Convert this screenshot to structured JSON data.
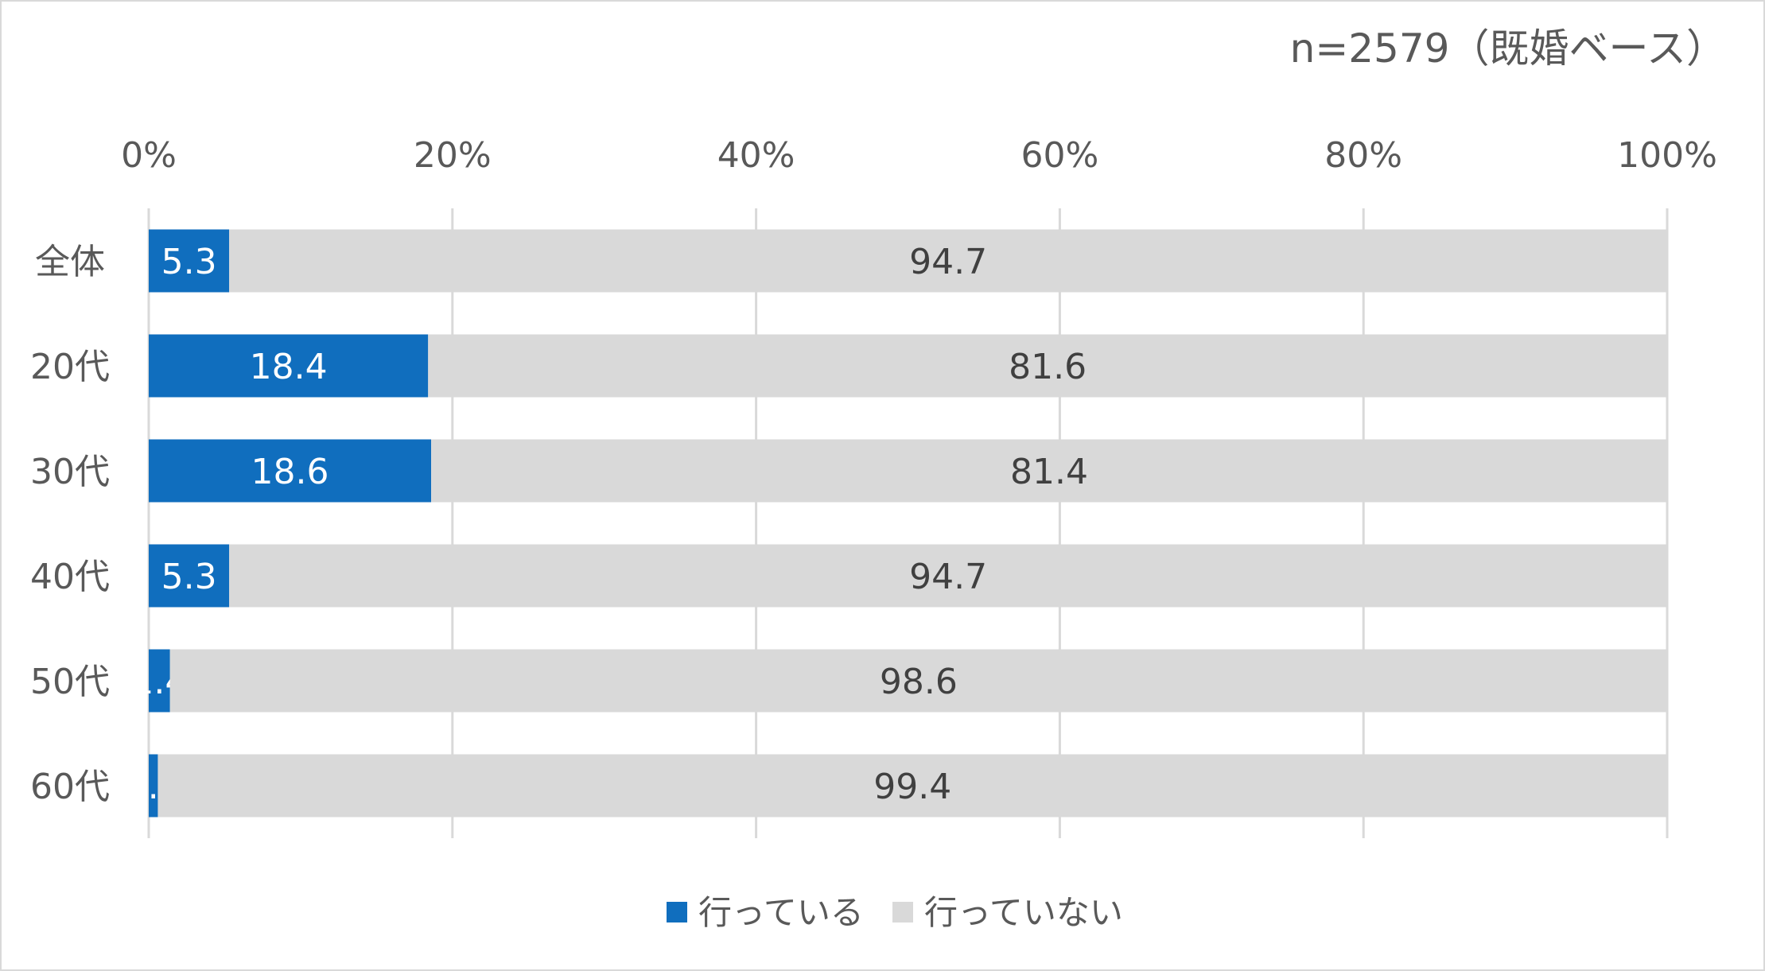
{
  "chart_data": {
    "type": "bar",
    "orientation": "horizontal",
    "stacked": "percent",
    "title": "n=2579（既婚ベース）",
    "categories": [
      "全体",
      "20代",
      "30代",
      "40代",
      "50代",
      "60代"
    ],
    "series": [
      {
        "name": "行っている",
        "color": "#106ebe",
        "values": [
          5.3,
          18.4,
          18.6,
          5.3,
          1.4,
          0.6
        ]
      },
      {
        "name": "行っていない",
        "color": "#d9d9d9",
        "values": [
          94.7,
          81.6,
          81.4,
          94.7,
          98.6,
          99.4
        ]
      }
    ],
    "xlim": [
      0,
      100
    ],
    "x_ticks": [
      "0%",
      "20%",
      "40%",
      "60%",
      "80%",
      "100%"
    ],
    "grid": true,
    "legend_position": "bottom",
    "xlabel": "",
    "ylabel": ""
  }
}
